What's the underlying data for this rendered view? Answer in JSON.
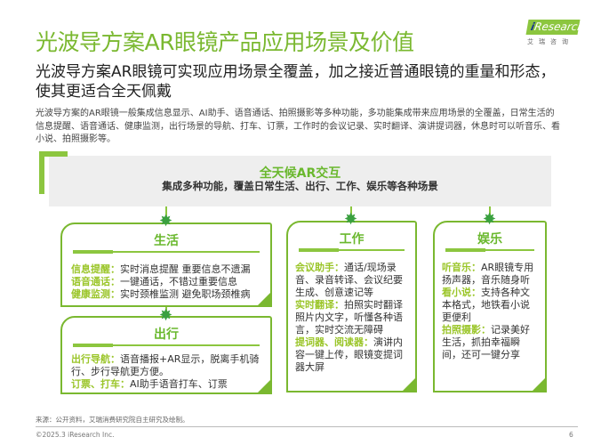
{
  "title": "光波导方案AR眼镜产品应用场景及价值",
  "logo": {
    "brand": "iResearch",
    "cn": "艾瑞咨询"
  },
  "subtitle": "光波导方案AR眼镜可实现应用场景全覆盖，加之接近普通眼镜的重量和形态，使其更适合全天佩戴",
  "body": "光波导方案的AR眼镜一般集成信息显示、AI助手、语音通话、拍照摄影等多种功能，多功能集成带来应用场景的全覆盖，日常生活的信息提醒、语音通话、健康监测，出行场景的导航、打车、订票，工作时的会议记录、实时翻译、演讲提词器，休息时可以听音乐、看小说、拍照摄影等。",
  "band": {
    "heading": "全天候AR交互",
    "subheading": "集成多种功能，覆盖日常生活、出行、工作、娱乐等各种场景"
  },
  "cards": [
    {
      "title": "生活",
      "items": [
        {
          "k": "信息提醒：",
          "v": "实时消息提醒 重要信息不遗漏"
        },
        {
          "k": "语音通话：",
          "v": "一键通话，不错过重要信息"
        },
        {
          "k": "健康监测：",
          "v": "实时颈椎监测 避免职场颈椎病"
        }
      ]
    },
    {
      "title": "出行",
      "items": [
        {
          "k": "出行导航：",
          "v": "语音播报+AR显示，脱离手机骑行、步行导航更方便。"
        },
        {
          "k": "订票、打车：",
          "v": "AI助手语音打车、订票"
        }
      ]
    },
    {
      "title": "工作",
      "items": [
        {
          "k": "会议助手：",
          "v": "通话/现场录音、录音转译、会议纪要生成、创意速记等"
        },
        {
          "k": "实时翻译：",
          "v": "拍照实时翻译照片内文字，听懂各种语言，实时交流无障碍"
        },
        {
          "k": "提词器、阅读器：",
          "v": "演讲内容一键上传，眼镜变提词器大屏"
        }
      ]
    },
    {
      "title": "娱乐",
      "items": [
        {
          "k": "听音乐：",
          "v": "AR眼镜专用扬声器，音乐随身听"
        },
        {
          "k": "看小说：",
          "v": "支持各种文本格式，地铁看小说更便利"
        },
        {
          "k": "拍照摄影：",
          "v": "记录美好生活，抓拍幸福瞬间，还可一键分享"
        }
      ]
    }
  ],
  "footer": {
    "source": "来源：公开资料，艾瑞消费研究院自主研究及绘制。",
    "copyright": "©2025.3 iResearch Inc.",
    "page": "6"
  },
  "colors": {
    "accent": "#7ab830"
  }
}
